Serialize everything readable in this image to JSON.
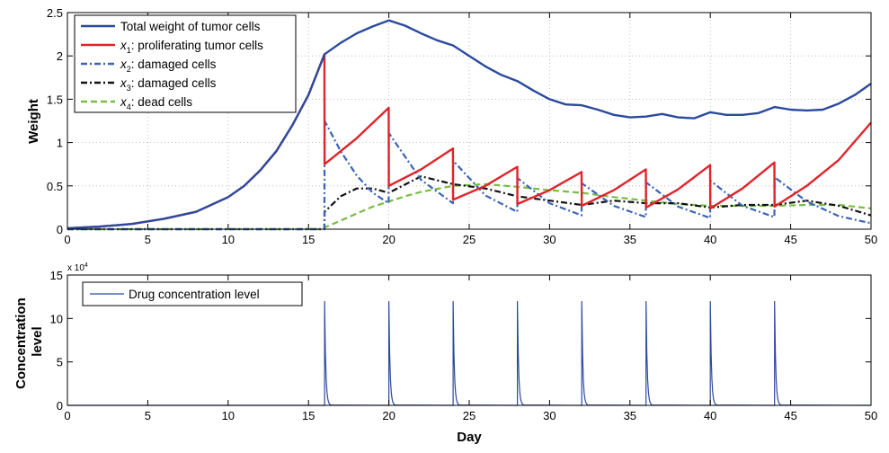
{
  "chart_data": [
    {
      "type": "line",
      "ylabel": "Weight",
      "xlim": [
        0,
        50
      ],
      "ylim": [
        0,
        2.5
      ],
      "xticks": [
        "0",
        "5",
        "10",
        "15",
        "20",
        "25",
        "30",
        "35",
        "40",
        "45",
        "50"
      ],
      "yticks": [
        "0",
        "0.5",
        "1",
        "1.5",
        "2",
        "2.5"
      ],
      "grid": true,
      "legend_position": "top-left",
      "series": [
        {
          "name": "Total weight of tumor cells",
          "color": "#2c4a9e",
          "style": "solid",
          "x": [
            0,
            2,
            4,
            6,
            8,
            10,
            11,
            12,
            13,
            14,
            15,
            16,
            17,
            18,
            19,
            20,
            21,
            22,
            23,
            24,
            25,
            26,
            27,
            28,
            29,
            30,
            31,
            32,
            33,
            34,
            35,
            36,
            37,
            38,
            39,
            40,
            41,
            42,
            43,
            44,
            45,
            46,
            47,
            48,
            49,
            50
          ],
          "y": [
            0.01,
            0.03,
            0.06,
            0.12,
            0.2,
            0.37,
            0.5,
            0.68,
            0.9,
            1.2,
            1.55,
            2.02,
            2.15,
            2.26,
            2.34,
            2.41,
            2.35,
            2.26,
            2.18,
            2.12,
            2.0,
            1.88,
            1.78,
            1.71,
            1.6,
            1.5,
            1.44,
            1.43,
            1.38,
            1.32,
            1.29,
            1.3,
            1.33,
            1.29,
            1.28,
            1.35,
            1.32,
            1.32,
            1.34,
            1.41,
            1.38,
            1.37,
            1.38,
            1.45,
            1.55,
            1.68
          ]
        },
        {
          "name": "x1: proliferating tumor cells",
          "legend_math": "x",
          "legend_sub": "1",
          "legend_rest": ": proliferating tumor cells",
          "color": "#e0242a",
          "style": "solid",
          "x": [
            0,
            2,
            4,
            6,
            8,
            10,
            11,
            12,
            13,
            14,
            15,
            15.99,
            16,
            18,
            19.99,
            20,
            22,
            23.99,
            24,
            26,
            27.99,
            28,
            30,
            31.99,
            32,
            34,
            35.99,
            36,
            38,
            39.99,
            40,
            42,
            43.99,
            44,
            46,
            48,
            50
          ],
          "y": [
            0.01,
            0.03,
            0.06,
            0.12,
            0.2,
            0.37,
            0.5,
            0.68,
            0.9,
            1.2,
            1.55,
            2.02,
            0.75,
            1.05,
            1.4,
            0.5,
            0.69,
            0.93,
            0.34,
            0.5,
            0.72,
            0.29,
            0.45,
            0.66,
            0.27,
            0.45,
            0.69,
            0.25,
            0.46,
            0.74,
            0.24,
            0.47,
            0.77,
            0.26,
            0.5,
            0.8,
            1.23
          ]
        },
        {
          "name": "x2: damaged cells",
          "legend_math": "x",
          "legend_sub": "2",
          "legend_rest": ": damaged cells",
          "color": "#3a64b5",
          "style": "dashdot",
          "x": [
            0,
            15.99,
            16,
            17,
            18,
            19,
            19.99,
            20,
            22,
            23.99,
            24,
            26,
            27.99,
            28,
            30,
            31.99,
            32,
            34,
            35.99,
            36,
            38,
            39.99,
            40,
            42,
            43.99,
            44,
            46,
            48,
            50
          ],
          "y": [
            0,
            0,
            1.25,
            0.9,
            0.62,
            0.42,
            0.3,
            1.11,
            0.57,
            0.3,
            0.79,
            0.39,
            0.2,
            0.59,
            0.3,
            0.16,
            0.53,
            0.27,
            0.14,
            0.54,
            0.26,
            0.13,
            0.56,
            0.27,
            0.14,
            0.6,
            0.32,
            0.15,
            0.07
          ]
        },
        {
          "name": "x3: damaged cells",
          "legend_math": "x",
          "legend_sub": "3",
          "legend_rest": ": damaged cells",
          "color": "#111111",
          "style": "dashdot",
          "x": [
            0,
            15.99,
            16,
            17,
            18,
            19,
            20,
            22,
            24,
            26,
            28,
            30,
            32,
            34,
            36,
            38,
            40,
            42,
            44,
            46,
            48,
            50
          ],
          "y": [
            0,
            0,
            0.2,
            0.38,
            0.47,
            0.47,
            0.42,
            0.61,
            0.52,
            0.47,
            0.38,
            0.33,
            0.28,
            0.33,
            0.3,
            0.3,
            0.25,
            0.28,
            0.28,
            0.33,
            0.27,
            0.16
          ]
        },
        {
          "name": "x4: dead cells",
          "legend_math": "x",
          "legend_sub": "4",
          "legend_rest": ": dead cells",
          "color": "#77be43",
          "style": "dashed",
          "x": [
            0,
            15.99,
            16,
            17,
            18,
            19,
            20,
            21,
            22,
            24,
            26,
            28,
            30,
            32,
            34,
            36,
            38,
            40,
            42,
            44,
            46,
            48,
            50
          ],
          "y": [
            0,
            0,
            0.02,
            0.1,
            0.18,
            0.26,
            0.32,
            0.38,
            0.43,
            0.5,
            0.52,
            0.49,
            0.45,
            0.42,
            0.37,
            0.33,
            0.29,
            0.27,
            0.27,
            0.27,
            0.28,
            0.28,
            0.24
          ]
        }
      ]
    },
    {
      "type": "line",
      "xlabel": "Day",
      "ylabel_lines": [
        "Concentration",
        "level"
      ],
      "multiplier_base": "x 10",
      "multiplier_exp": "4",
      "xlim": [
        0,
        50
      ],
      "ylim": [
        0,
        15
      ],
      "xticks": [
        "0",
        "5",
        "10",
        "15",
        "20",
        "25",
        "30",
        "35",
        "40",
        "45",
        "50"
      ],
      "yticks": [
        "0",
        "5",
        "10",
        "15"
      ],
      "grid": false,
      "legend_position": "top-left",
      "pulse_days": [
        16,
        20,
        24,
        28,
        32,
        36,
        40,
        44
      ],
      "pulse_peak": 12,
      "series": [
        {
          "name": "Drug concentration level",
          "color": "#2c4a9e",
          "style": "solid"
        }
      ]
    }
  ]
}
